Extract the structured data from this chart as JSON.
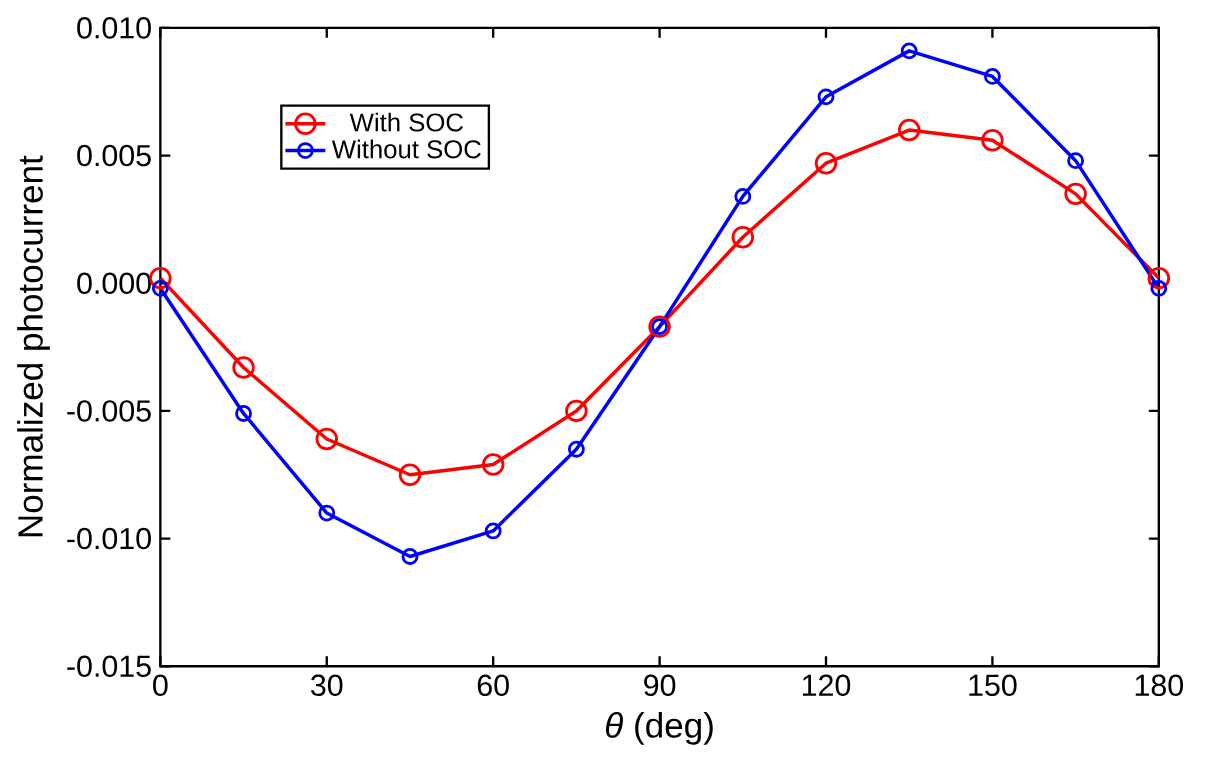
{
  "chart_data": {
    "type": "line",
    "xlabel": "*θ* (deg)",
    "ylabel": "Normalized photocurrent",
    "x": [
      0,
      15,
      30,
      45,
      60,
      75,
      90,
      105,
      120,
      135,
      150,
      165,
      180
    ],
    "series": [
      {
        "name": "With SOC",
        "color": "#ff0000",
        "values": [
          0.0002,
          -0.0033,
          -0.0061,
          -0.0075,
          -0.0071,
          -0.005,
          -0.0017,
          0.0018,
          0.0047,
          0.006,
          0.0056,
          0.0035,
          0.0002
        ]
      },
      {
        "name": "Without SOC",
        "color": "#0000ff",
        "values": [
          -0.0002,
          -0.0051,
          -0.009,
          -0.0107,
          -0.0097,
          -0.0065,
          -0.0017,
          0.0034,
          0.0073,
          0.0091,
          0.0081,
          0.0048,
          -0.0002
        ]
      }
    ],
    "xlim": [
      0,
      180
    ],
    "xticks": [
      0,
      30,
      60,
      90,
      120,
      150,
      180
    ],
    "ylim": [
      -0.015,
      0.01
    ],
    "yticks": [
      {
        "value": -0.015,
        "label": "-0.015"
      },
      {
        "value": -0.01,
        "label": "-0.010"
      },
      {
        "value": -0.005,
        "label": "-0.005"
      },
      {
        "value": 0,
        "label": "0.000"
      },
      {
        "value": 0.005,
        "label": "0.005"
      },
      {
        "value": 0.01,
        "label": "0.010"
      }
    ],
    "legend": "top left",
    "marker": "circle",
    "line_style": "solid",
    "grid": false
  }
}
